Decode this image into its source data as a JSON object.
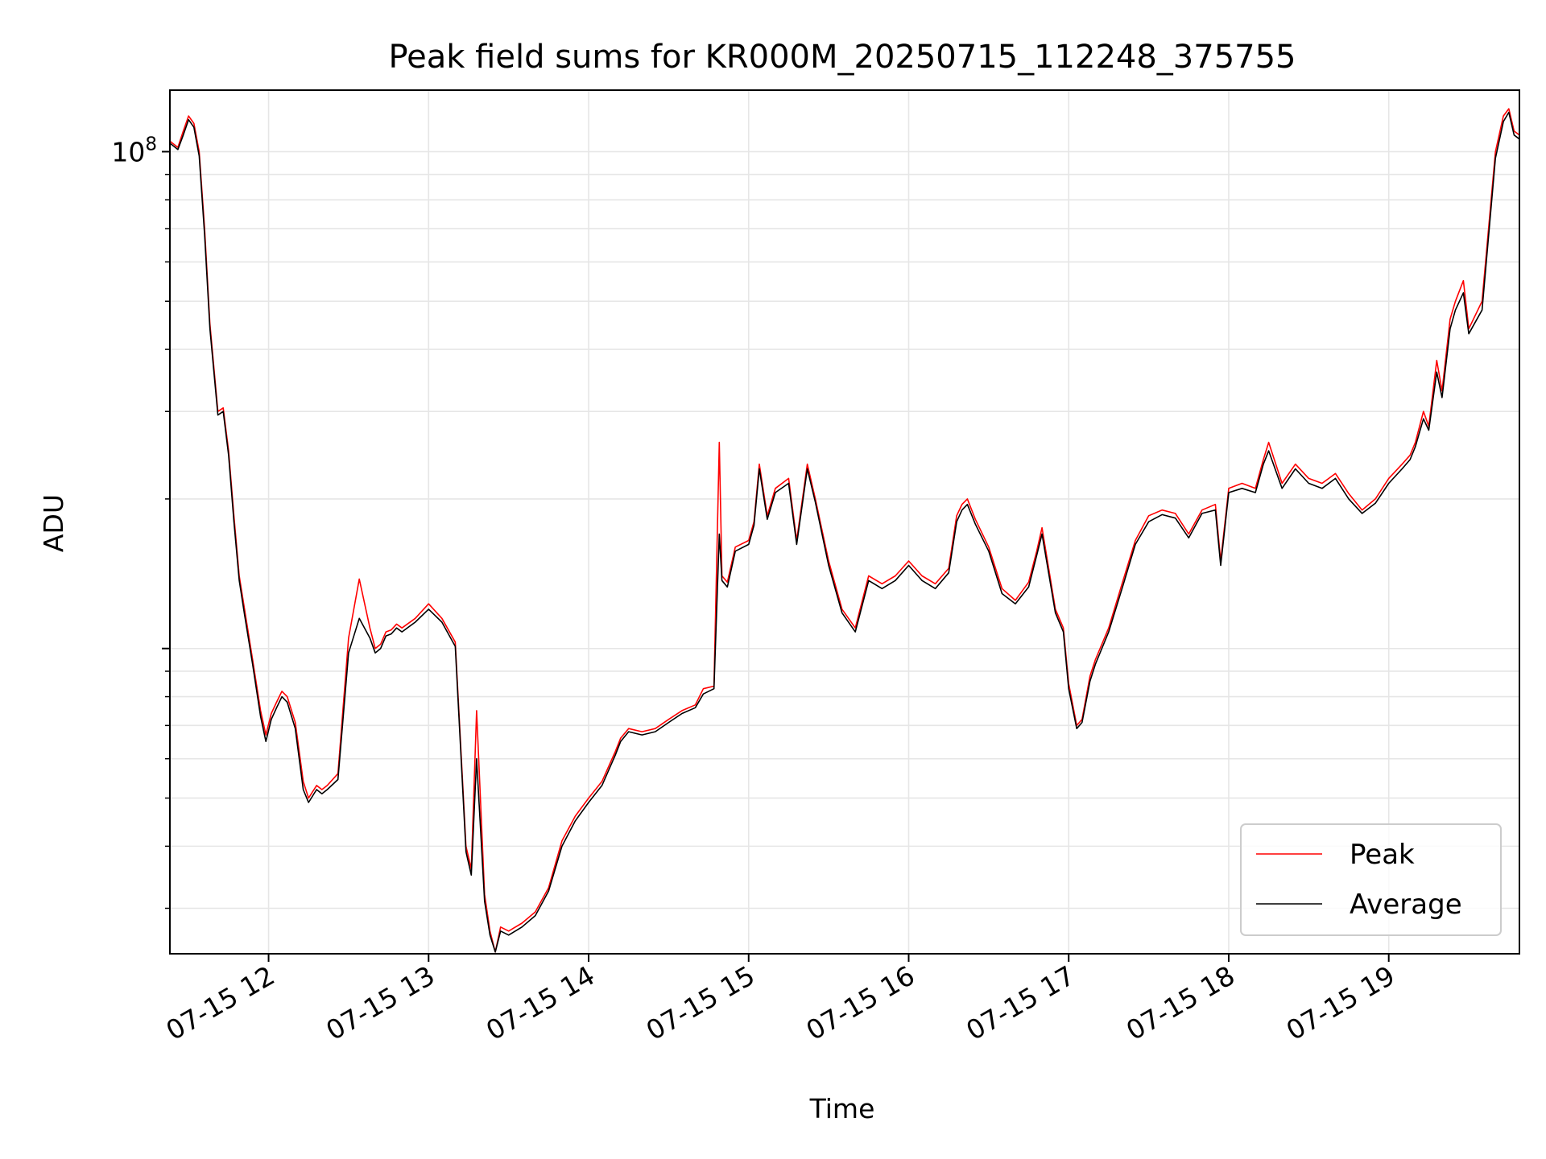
{
  "chart_data": {
    "type": "line",
    "title": "Peak field sums for KR000M_20250715_112248_375755",
    "xlabel": "Time",
    "ylabel": "ADU",
    "yscale": "log",
    "y_tick_label": {
      "base": "10",
      "exp": "8",
      "value": 100000000
    },
    "ylim": [
      2430000,
      133000000
    ],
    "xlim": [
      "2025-07-15 11:23",
      "2025-07-15 19:49"
    ],
    "x_tick_labels": [
      "07-15 12",
      "07-15 13",
      "07-15 14",
      "07-15 15",
      "07-15 16",
      "07-15 17",
      "07-15 18",
      "07-15 19"
    ],
    "x_tick_times": [
      "2025-07-15 12:00",
      "2025-07-15 13:00",
      "2025-07-15 14:00",
      "2025-07-15 15:00",
      "2025-07-15 16:00",
      "2025-07-15 17:00",
      "2025-07-15 18:00",
      "2025-07-15 19:00"
    ],
    "grid": true,
    "legend_position": "bottom-right",
    "series": [
      {
        "name": "Peak",
        "color": "#ff0000",
        "x": [
          "2025-07-15 11:23",
          "2025-07-15 11:26",
          "2025-07-15 11:28",
          "2025-07-15 11:30",
          "2025-07-15 11:32",
          "2025-07-15 11:34",
          "2025-07-15 11:36",
          "2025-07-15 11:38",
          "2025-07-15 11:41",
          "2025-07-15 11:43",
          "2025-07-15 11:45",
          "2025-07-15 11:47",
          "2025-07-15 11:49",
          "2025-07-15 11:51",
          "2025-07-15 11:54",
          "2025-07-15 11:57",
          "2025-07-15 11:59",
          "2025-07-15 12:01",
          "2025-07-15 12:03",
          "2025-07-15 12:05",
          "2025-07-15 12:07",
          "2025-07-15 12:10",
          "2025-07-15 12:13",
          "2025-07-15 12:15",
          "2025-07-15 12:18",
          "2025-07-15 12:20",
          "2025-07-15 12:22",
          "2025-07-15 12:26",
          "2025-07-15 12:30",
          "2025-07-15 12:34",
          "2025-07-15 12:38",
          "2025-07-15 12:40",
          "2025-07-15 12:42",
          "2025-07-15 12:44",
          "2025-07-15 12:46",
          "2025-07-15 12:48",
          "2025-07-15 12:50",
          "2025-07-15 12:55",
          "2025-07-15 13:00",
          "2025-07-15 13:05",
          "2025-07-15 13:10",
          "2025-07-15 13:14",
          "2025-07-15 13:16",
          "2025-07-15 13:18",
          "2025-07-15 13:21",
          "2025-07-15 13:23",
          "2025-07-15 13:25",
          "2025-07-15 13:27",
          "2025-07-15 13:30",
          "2025-07-15 13:35",
          "2025-07-15 13:40",
          "2025-07-15 13:45",
          "2025-07-15 13:50",
          "2025-07-15 13:55",
          "2025-07-15 14:00",
          "2025-07-15 14:05",
          "2025-07-15 14:10",
          "2025-07-15 14:12",
          "2025-07-15 14:15",
          "2025-07-15 14:20",
          "2025-07-15 14:25",
          "2025-07-15 14:30",
          "2025-07-15 14:35",
          "2025-07-15 14:40",
          "2025-07-15 14:43",
          "2025-07-15 14:47",
          "2025-07-15 14:49",
          "2025-07-15 14:50",
          "2025-07-15 14:52",
          "2025-07-15 14:55",
          "2025-07-15 15:00",
          "2025-07-15 15:02",
          "2025-07-15 15:04",
          "2025-07-15 15:07",
          "2025-07-15 15:10",
          "2025-07-15 15:15",
          "2025-07-15 15:18",
          "2025-07-15 15:22",
          "2025-07-15 15:25",
          "2025-07-15 15:30",
          "2025-07-15 15:35",
          "2025-07-15 15:40",
          "2025-07-15 15:45",
          "2025-07-15 15:50",
          "2025-07-15 15:55",
          "2025-07-15 16:00",
          "2025-07-15 16:05",
          "2025-07-15 16:10",
          "2025-07-15 16:15",
          "2025-07-15 16:18",
          "2025-07-15 16:20",
          "2025-07-15 16:22",
          "2025-07-15 16:25",
          "2025-07-15 16:30",
          "2025-07-15 16:35",
          "2025-07-15 16:40",
          "2025-07-15 16:45",
          "2025-07-15 16:48",
          "2025-07-15 16:50",
          "2025-07-15 16:55",
          "2025-07-15 16:58",
          "2025-07-15 17:00",
          "2025-07-15 17:03",
          "2025-07-15 17:05",
          "2025-07-15 17:08",
          "2025-07-15 17:10",
          "2025-07-15 17:15",
          "2025-07-15 17:20",
          "2025-07-15 17:25",
          "2025-07-15 17:30",
          "2025-07-15 17:35",
          "2025-07-15 17:40",
          "2025-07-15 17:45",
          "2025-07-15 17:50",
          "2025-07-15 17:55",
          "2025-07-15 17:57",
          "2025-07-15 18:00",
          "2025-07-15 18:05",
          "2025-07-15 18:10",
          "2025-07-15 18:13",
          "2025-07-15 18:15",
          "2025-07-15 18:20",
          "2025-07-15 18:25",
          "2025-07-15 18:30",
          "2025-07-15 18:35",
          "2025-07-15 18:40",
          "2025-07-15 18:45",
          "2025-07-15 18:50",
          "2025-07-15 18:55",
          "2025-07-15 19:00",
          "2025-07-15 19:05",
          "2025-07-15 19:08",
          "2025-07-15 19:10",
          "2025-07-15 19:13",
          "2025-07-15 19:15",
          "2025-07-15 19:18",
          "2025-07-15 19:20",
          "2025-07-15 19:23",
          "2025-07-15 19:25",
          "2025-07-15 19:28",
          "2025-07-15 19:30",
          "2025-07-15 19:35",
          "2025-07-15 19:40",
          "2025-07-15 19:43",
          "2025-07-15 19:45",
          "2025-07-15 19:47",
          "2025-07-15 19:49"
        ],
        "y": [
          105000000,
          102000000,
          110000000,
          118000000,
          114000000,
          100000000,
          70000000,
          45000000,
          30000000,
          30500000,
          25000000,
          18500000,
          14000000,
          12000000,
          9500000,
          7500000,
          6700000,
          7400000,
          7800000,
          8200000,
          8000000,
          7100000,
          5400000,
          5000000,
          5300000,
          5200000,
          5300000,
          5600000,
          10500000,
          13800000,
          11000000,
          10000000,
          10200000,
          10800000,
          10900000,
          11200000,
          11000000,
          11500000,
          12300000,
          11500000,
          10300000,
          4000000,
          3600000,
          7500000,
          3200000,
          2700000,
          2450000,
          2750000,
          2700000,
          2800000,
          2950000,
          3300000,
          4100000,
          4600000,
          5000000,
          5400000,
          6200000,
          6600000,
          6900000,
          6800000,
          6900000,
          7200000,
          7500000,
          7700000,
          8300000,
          8400000,
          26000000,
          14000000,
          13600000,
          16000000,
          16500000,
          18000000,
          23500000,
          18500000,
          21000000,
          22000000,
          16500000,
          23500000,
          20000000,
          15000000,
          12000000,
          11000000,
          14000000,
          13500000,
          14000000,
          15000000,
          14000000,
          13500000,
          14500000,
          18500000,
          19500000,
          20000000,
          18200000,
          16000000,
          13200000,
          12500000,
          13600000,
          15700000,
          17500000,
          12000000,
          11000000,
          8500000,
          7000000,
          7200000,
          8800000,
          9500000,
          11000000,
          13500000,
          16500000,
          18500000,
          19000000,
          18700000,
          17000000,
          19000000,
          19500000,
          15000000,
          21000000,
          21500000,
          21000000,
          24000000,
          26000000,
          21500000,
          23500000,
          22000000,
          21500000,
          22500000,
          20500000,
          19000000,
          20000000,
          22000000,
          23500000,
          24500000,
          26000000,
          30000000,
          28000000,
          38000000,
          33000000,
          46000000,
          50000000,
          55000000,
          44000000,
          50000000,
          100000000,
          118000000,
          122000000,
          110000000,
          108000000
        ]
      },
      {
        "name": "Average",
        "color": "#000000",
        "x": [
          "2025-07-15 11:23",
          "2025-07-15 11:26",
          "2025-07-15 11:28",
          "2025-07-15 11:30",
          "2025-07-15 11:32",
          "2025-07-15 11:34",
          "2025-07-15 11:36",
          "2025-07-15 11:38",
          "2025-07-15 11:41",
          "2025-07-15 11:43",
          "2025-07-15 11:45",
          "2025-07-15 11:47",
          "2025-07-15 11:49",
          "2025-07-15 11:51",
          "2025-07-15 11:54",
          "2025-07-15 11:57",
          "2025-07-15 11:59",
          "2025-07-15 12:01",
          "2025-07-15 12:03",
          "2025-07-15 12:05",
          "2025-07-15 12:07",
          "2025-07-15 12:10",
          "2025-07-15 12:13",
          "2025-07-15 12:15",
          "2025-07-15 12:18",
          "2025-07-15 12:20",
          "2025-07-15 12:22",
          "2025-07-15 12:26",
          "2025-07-15 12:30",
          "2025-07-15 12:34",
          "2025-07-15 12:38",
          "2025-07-15 12:40",
          "2025-07-15 12:42",
          "2025-07-15 12:44",
          "2025-07-15 12:46",
          "2025-07-15 12:48",
          "2025-07-15 12:50",
          "2025-07-15 12:55",
          "2025-07-15 13:00",
          "2025-07-15 13:05",
          "2025-07-15 13:10",
          "2025-07-15 13:14",
          "2025-07-15 13:16",
          "2025-07-15 13:18",
          "2025-07-15 13:21",
          "2025-07-15 13:23",
          "2025-07-15 13:25",
          "2025-07-15 13:27",
          "2025-07-15 13:30",
          "2025-07-15 13:35",
          "2025-07-15 13:40",
          "2025-07-15 13:45",
          "2025-07-15 13:50",
          "2025-07-15 13:55",
          "2025-07-15 14:00",
          "2025-07-15 14:05",
          "2025-07-15 14:10",
          "2025-07-15 14:12",
          "2025-07-15 14:15",
          "2025-07-15 14:20",
          "2025-07-15 14:25",
          "2025-07-15 14:30",
          "2025-07-15 14:35",
          "2025-07-15 14:40",
          "2025-07-15 14:43",
          "2025-07-15 14:47",
          "2025-07-15 14:49",
          "2025-07-15 14:50",
          "2025-07-15 14:52",
          "2025-07-15 14:55",
          "2025-07-15 15:00",
          "2025-07-15 15:02",
          "2025-07-15 15:04",
          "2025-07-15 15:07",
          "2025-07-15 15:10",
          "2025-07-15 15:15",
          "2025-07-15 15:18",
          "2025-07-15 15:22",
          "2025-07-15 15:25",
          "2025-07-15 15:30",
          "2025-07-15 15:35",
          "2025-07-15 15:40",
          "2025-07-15 15:45",
          "2025-07-15 15:50",
          "2025-07-15 15:55",
          "2025-07-15 16:00",
          "2025-07-15 16:05",
          "2025-07-15 16:10",
          "2025-07-15 16:15",
          "2025-07-15 16:18",
          "2025-07-15 16:20",
          "2025-07-15 16:22",
          "2025-07-15 16:25",
          "2025-07-15 16:30",
          "2025-07-15 16:35",
          "2025-07-15 16:40",
          "2025-07-15 16:45",
          "2025-07-15 16:48",
          "2025-07-15 16:50",
          "2025-07-15 16:55",
          "2025-07-15 16:58",
          "2025-07-15 17:00",
          "2025-07-15 17:03",
          "2025-07-15 17:05",
          "2025-07-15 17:08",
          "2025-07-15 17:10",
          "2025-07-15 17:15",
          "2025-07-15 17:20",
          "2025-07-15 17:25",
          "2025-07-15 17:30",
          "2025-07-15 17:35",
          "2025-07-15 17:40",
          "2025-07-15 17:45",
          "2025-07-15 17:50",
          "2025-07-15 17:55",
          "2025-07-15 17:57",
          "2025-07-15 18:00",
          "2025-07-15 18:05",
          "2025-07-15 18:10",
          "2025-07-15 18:13",
          "2025-07-15 18:15",
          "2025-07-15 18:20",
          "2025-07-15 18:25",
          "2025-07-15 18:30",
          "2025-07-15 18:35",
          "2025-07-15 18:40",
          "2025-07-15 18:45",
          "2025-07-15 18:50",
          "2025-07-15 18:55",
          "2025-07-15 19:00",
          "2025-07-15 19:05",
          "2025-07-15 19:08",
          "2025-07-15 19:10",
          "2025-07-15 19:13",
          "2025-07-15 19:15",
          "2025-07-15 19:18",
          "2025-07-15 19:20",
          "2025-07-15 19:23",
          "2025-07-15 19:25",
          "2025-07-15 19:28",
          "2025-07-15 19:30",
          "2025-07-15 19:35",
          "2025-07-15 19:40",
          "2025-07-15 19:43",
          "2025-07-15 19:45",
          "2025-07-15 19:47",
          "2025-07-15 19:49"
        ],
        "y": [
          104000000,
          101000000,
          108000000,
          116000000,
          112000000,
          98000000,
          68000000,
          44000000,
          29500000,
          30000000,
          24500000,
          18000000,
          13700000,
          11700000,
          9300000,
          7300000,
          6500000,
          7200000,
          7600000,
          8000000,
          7800000,
          6900000,
          5200000,
          4900000,
          5200000,
          5100000,
          5200000,
          5450000,
          9800000,
          11500000,
          10500000,
          9800000,
          10000000,
          10600000,
          10700000,
          11000000,
          10800000,
          11300000,
          12000000,
          11300000,
          10100000,
          3900000,
          3500000,
          6000000,
          3100000,
          2650000,
          2450000,
          2700000,
          2650000,
          2750000,
          2900000,
          3250000,
          4000000,
          4500000,
          4900000,
          5300000,
          6100000,
          6500000,
          6800000,
          6700000,
          6800000,
          7100000,
          7400000,
          7600000,
          8100000,
          8300000,
          17000000,
          13700000,
          13300000,
          15700000,
          16200000,
          17700000,
          23000000,
          18200000,
          20600000,
          21500000,
          16200000,
          23000000,
          19700000,
          14700000,
          11800000,
          10800000,
          13700000,
          13200000,
          13700000,
          14700000,
          13700000,
          13200000,
          14200000,
          18000000,
          19000000,
          19500000,
          17800000,
          15700000,
          12900000,
          12300000,
          13300000,
          15400000,
          17000000,
          11800000,
          10800000,
          8300000,
          6900000,
          7100000,
          8600000,
          9300000,
          10800000,
          13200000,
          16200000,
          18000000,
          18600000,
          18300000,
          16700000,
          18700000,
          19000000,
          14700000,
          20600000,
          21000000,
          20600000,
          23500000,
          25000000,
          21000000,
          23000000,
          21500000,
          21000000,
          22000000,
          20000000,
          18700000,
          19600000,
          21500000,
          23000000,
          24000000,
          25500000,
          29000000,
          27500000,
          36000000,
          32000000,
          44000000,
          48000000,
          52000000,
          43000000,
          48000000,
          97000000,
          115000000,
          120000000,
          108000000,
          106000000
        ]
      }
    ]
  }
}
